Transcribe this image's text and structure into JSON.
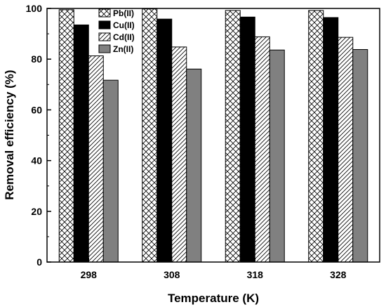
{
  "chart_data": {
    "type": "bar",
    "xlabel": "Temperature (K)",
    "ylabel": "Removal efficiency (%)",
    "ylim": [
      0,
      100
    ],
    "yticks": [
      0,
      20,
      40,
      60,
      80,
      100
    ],
    "categories": [
      "298",
      "308",
      "318",
      "328"
    ],
    "series": [
      {
        "name": "Pb(II)",
        "pattern": "crosshatch",
        "color": "#000000",
        "values": [
          99.5,
          99.8,
          99.2,
          99.2
        ]
      },
      {
        "name": "Cu(II)",
        "pattern": "solid",
        "color": "#000000",
        "values": [
          93.5,
          95.8,
          96.6,
          96.4
        ]
      },
      {
        "name": "Cd(II)",
        "pattern": "diagonal",
        "color": "#000000",
        "values": [
          81.3,
          84.8,
          88.8,
          88.6
        ]
      },
      {
        "name": "Zn(II)",
        "pattern": "solid",
        "color": "#808080",
        "values": [
          71.7,
          76.1,
          83.6,
          83.8
        ]
      }
    ],
    "legend_position": "top-left",
    "grid": false
  }
}
